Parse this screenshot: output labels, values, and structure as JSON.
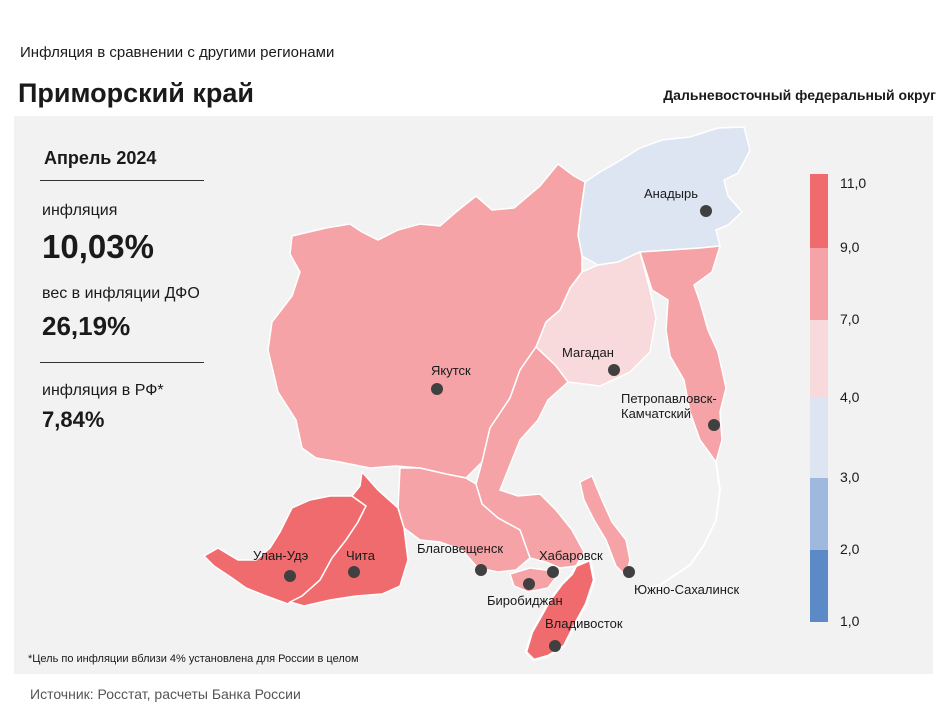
{
  "header": {
    "subtitle": "Инфляция в сравнении с другими регионами",
    "title": "Приморский край",
    "district": "Дальневосточный федеральный округ"
  },
  "stats": {
    "period": "Апрель 2024",
    "inflation_label": "инфляция",
    "inflation_value": "10,03%",
    "weight_label": "вес в инфляции ДФО",
    "weight_value": "26,19%",
    "rf_label": "инфляция в РФ*",
    "rf_value": "7,84%"
  },
  "footnote": "*Цель по инфляции вблизи 4% установлена для России в целом",
  "source": "Источник: Росстат, расчеты Банка России",
  "legend": {
    "bins": [
      {
        "from": 9.0,
        "to": 11.0,
        "color": "#f06b6e"
      },
      {
        "from": 7.0,
        "to": 9.0,
        "color": "#f5a3a6"
      },
      {
        "from": 4.0,
        "to": 7.0,
        "color": "#f8dadc"
      },
      {
        "from": 3.0,
        "to": 4.0,
        "color": "#dde5f3"
      },
      {
        "from": 2.0,
        "to": 3.0,
        "color": "#9fb8dd"
      },
      {
        "from": 1.0,
        "to": 2.0,
        "color": "#5b8ac6"
      }
    ],
    "labels": [
      "11,0",
      "9,0",
      "7,0",
      "4,0",
      "3,0",
      "2,0",
      "1,0"
    ]
  },
  "cities": {
    "anadyr": "Анадырь",
    "magadan": "Магадан",
    "yakutsk": "Якутск",
    "petropavlovsk_1": "Петропавловск-",
    "petropavlovsk_2": "Камчатский",
    "ulan_ude": "Улан-Удэ",
    "chita": "Чита",
    "blagoveshchensk": "Благовещенск",
    "khabarovsk": "Хабаровск",
    "birobidzhan": "Биробиджан",
    "vladivostok": "Владивосток",
    "yuzhno": "Южно-Сахалинск"
  }
}
